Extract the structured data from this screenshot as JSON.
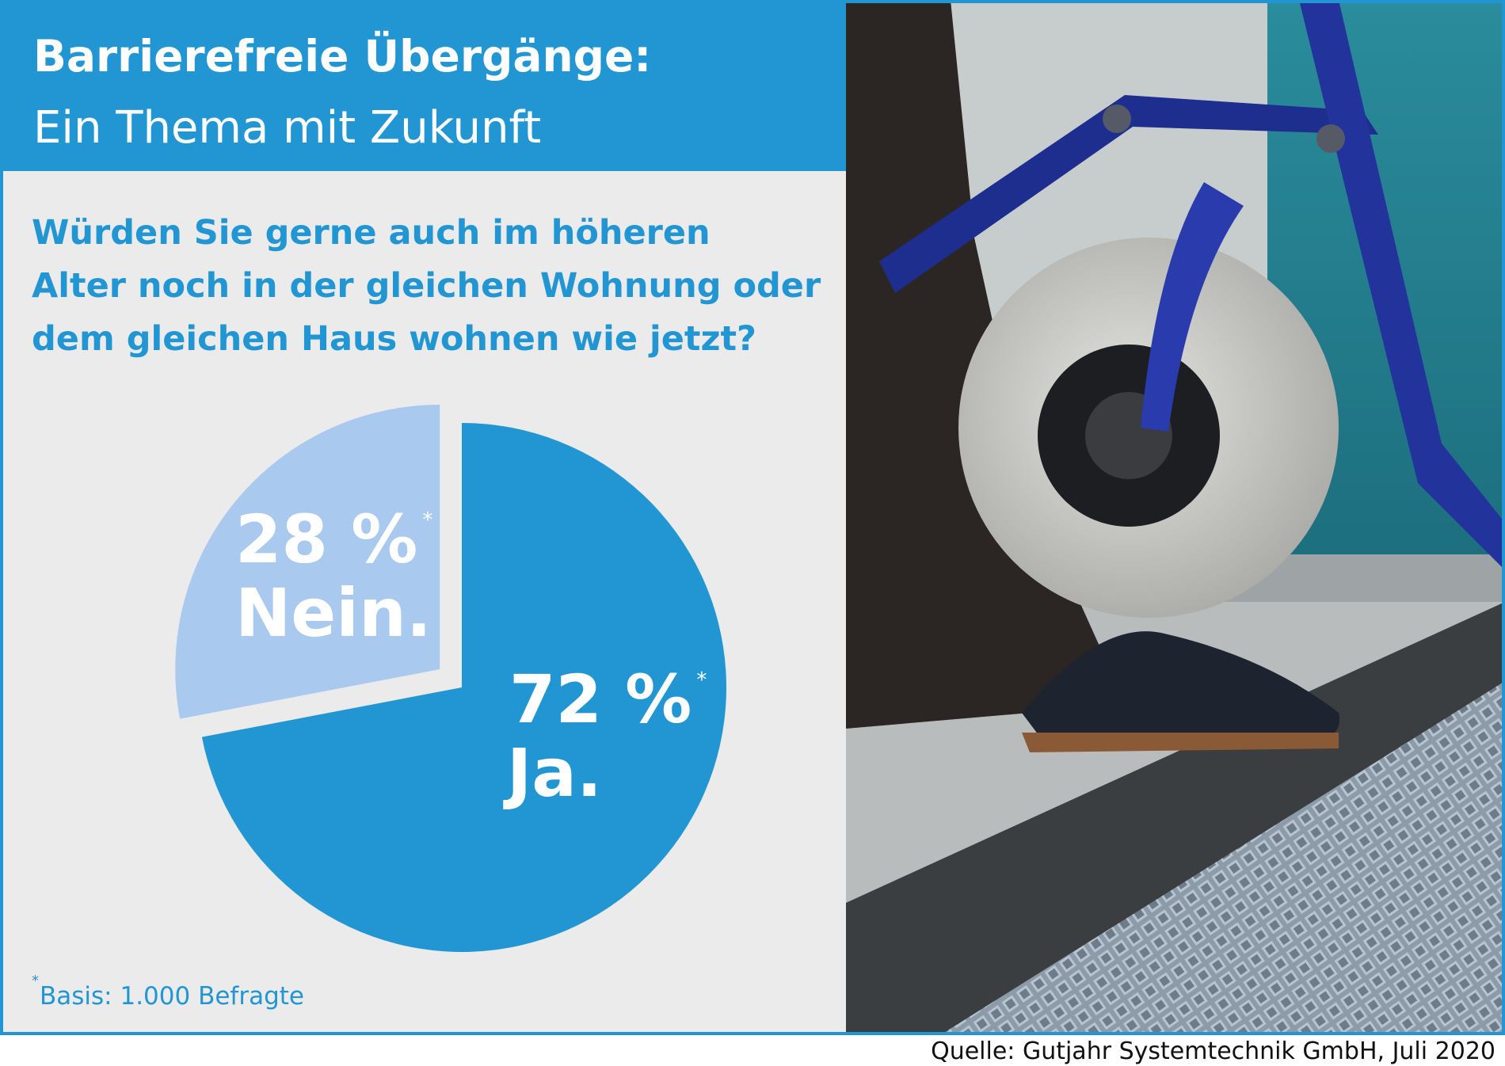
{
  "chart_data": {
    "type": "pie",
    "title": "Barrierefreie Übergänge:",
    "subtitle": "Ein Thema mit Zukunft",
    "question": [
      "Würden Sie gerne auch im höheren",
      "Alter noch in der gleichen Wohnung oder",
      "dem gleichen Haus wohnen wie jetzt?"
    ],
    "categories": [
      "Ja.",
      "Nein."
    ],
    "values": [
      72,
      28
    ],
    "value_labels": [
      "72 %",
      "28 %"
    ],
    "colors": [
      "#2196d3",
      "#a9c9ef"
    ],
    "footnote_marker": "*",
    "footnote": "Basis: 1.000 Befragte",
    "source": "Quelle: Gutjahr Systemtechnik GmbH, Juli 2020"
  }
}
